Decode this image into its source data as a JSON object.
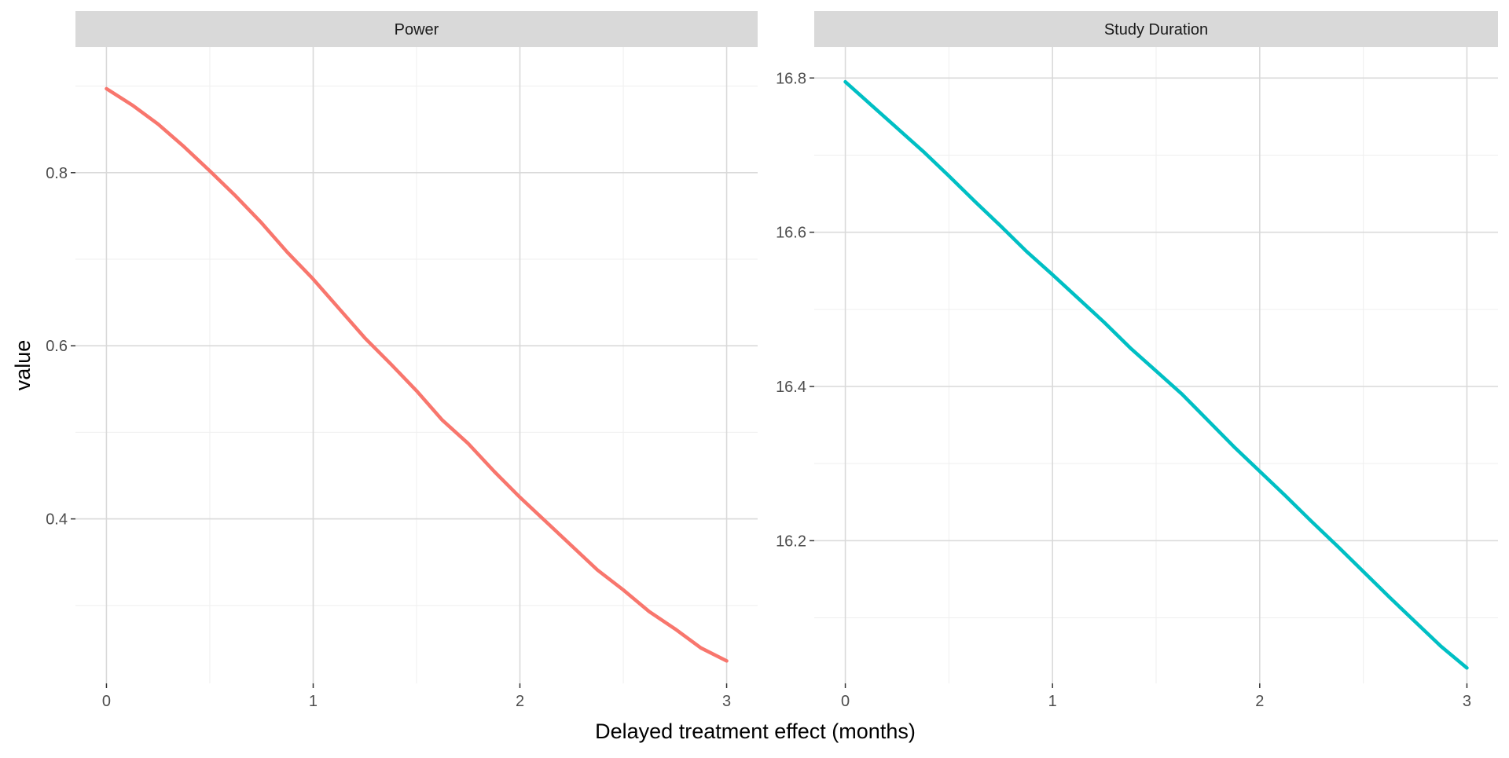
{
  "figure": {
    "xlabel": "Delayed treatment effect (months)",
    "ylabel": "value"
  },
  "colors": {
    "panel_bg": "#ffffff",
    "strip_bg": "#d9d9d9",
    "grid_major": "#d9d9d9",
    "grid_minor": "#efefef"
  },
  "chart_data": [
    {
      "type": "line",
      "title": "Power",
      "xlabel": "Delayed treatment effect (months)",
      "ylabel": "value",
      "xlim": [
        -0.15,
        3.15
      ],
      "ylim": [
        0.21,
        0.945
      ],
      "x_ticks": [
        0,
        1,
        2,
        3
      ],
      "x_tick_labels": [
        "0",
        "1",
        "2",
        "3"
      ],
      "y_ticks": [
        0.4,
        0.6,
        0.8
      ],
      "y_tick_labels": [
        "0.4",
        "0.6",
        "0.8"
      ],
      "grid": true,
      "legend": "none",
      "series": [
        {
          "color": "#F8766D",
          "x": [
            0,
            0.125,
            0.25,
            0.375,
            0.5,
            0.625,
            0.75,
            0.875,
            1.0,
            1.125,
            1.25,
            1.375,
            1.5,
            1.625,
            1.75,
            1.875,
            2.0,
            2.125,
            2.25,
            2.375,
            2.5,
            2.625,
            2.75,
            2.875,
            3.0
          ],
          "values": [
            0.897,
            0.878,
            0.856,
            0.83,
            0.802,
            0.773,
            0.742,
            0.708,
            0.677,
            0.643,
            0.609,
            0.579,
            0.548,
            0.514,
            0.487,
            0.455,
            0.425,
            0.397,
            0.369,
            0.341,
            0.318,
            0.293,
            0.273,
            0.251,
            0.236
          ]
        }
      ]
    },
    {
      "type": "line",
      "title": "Study Duration",
      "xlabel": "Delayed treatment effect (months)",
      "ylabel": "value",
      "xlim": [
        -0.15,
        3.15
      ],
      "ylim": [
        16.015,
        16.84
      ],
      "x_ticks": [
        0,
        1,
        2,
        3
      ],
      "x_tick_labels": [
        "0",
        "1",
        "2",
        "3"
      ],
      "y_ticks": [
        16.2,
        16.4,
        16.6,
        16.8
      ],
      "y_tick_labels": [
        "16.2",
        "16.4",
        "16.6",
        "16.8"
      ],
      "grid": true,
      "legend": "none",
      "series": [
        {
          "color": "#00BFC4",
          "x": [
            0,
            0.125,
            0.25,
            0.375,
            0.5,
            0.625,
            0.75,
            0.875,
            1.0,
            1.125,
            1.25,
            1.375,
            1.5,
            1.625,
            1.75,
            1.875,
            2.0,
            2.125,
            2.25,
            2.375,
            2.5,
            2.625,
            2.75,
            2.875,
            3.0
          ],
          "values": [
            16.795,
            16.765,
            16.735,
            16.705,
            16.673,
            16.64,
            16.608,
            16.575,
            16.545,
            16.514,
            16.483,
            16.45,
            16.42,
            16.39,
            16.356,
            16.322,
            16.29,
            16.258,
            16.225,
            16.193,
            16.16,
            16.127,
            16.095,
            16.063,
            16.035
          ]
        }
      ]
    }
  ]
}
